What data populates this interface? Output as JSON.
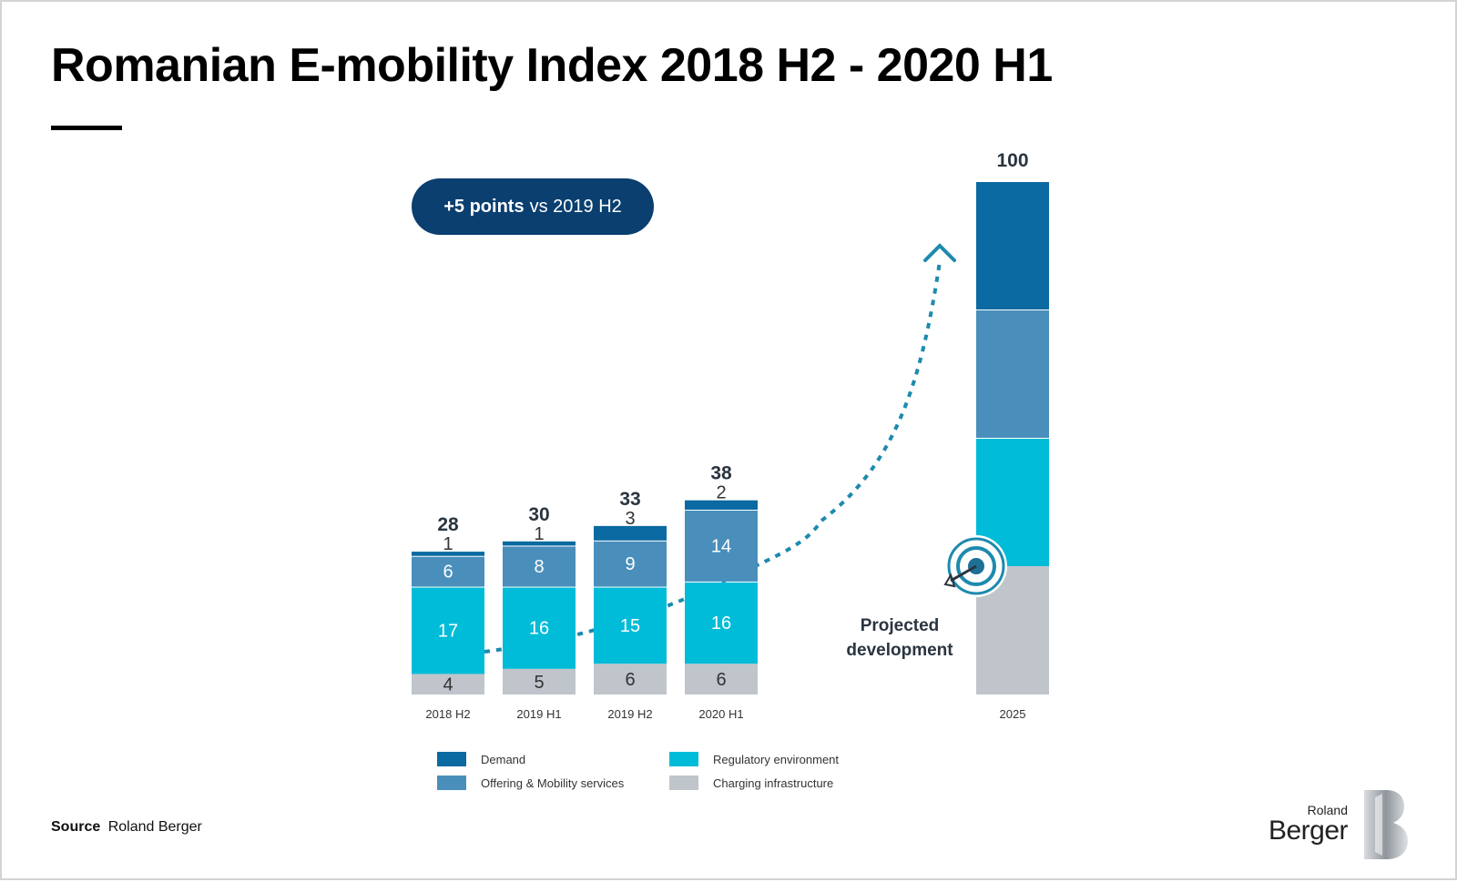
{
  "title": "Romanian E-mobility Index 2018 H2 - 2020 H1",
  "badge": {
    "strong": "+5 points",
    "light": "vs 2019 H2"
  },
  "projected_label_line1": "Projected",
  "projected_label_line2": "development",
  "source": {
    "key": "Source",
    "value": "Roland Berger"
  },
  "logo": {
    "word1": "Roland",
    "word2": "Berger"
  },
  "colors": {
    "demand": "#0a6aa1",
    "offering": "#4a8fbb",
    "regulatory": "#00bcd8",
    "charging": "#bfc5cb",
    "badge": "#0a3f6f",
    "arrow": "#1d8aae"
  },
  "chart_data": {
    "type": "bar",
    "stacked": true,
    "categories": [
      "2018 H2",
      "2019 H1",
      "2019 H2",
      "2020 H1",
      "2025"
    ],
    "series": [
      {
        "name": "Charging infrastructure",
        "values": [
          4,
          5,
          6,
          6,
          25
        ]
      },
      {
        "name": "Regulatory environment",
        "values": [
          17,
          16,
          15,
          16,
          25
        ]
      },
      {
        "name": "Offering & Mobility services",
        "values": [
          6,
          8,
          9,
          14,
          25
        ]
      },
      {
        "name": "Demand",
        "values": [
          1,
          1,
          3,
          2,
          25
        ]
      }
    ],
    "totals": [
      "28",
      "30",
      "33",
      "38",
      "100"
    ],
    "segment_labels": [
      [
        "4",
        "17",
        "6",
        "1"
      ],
      [
        "5",
        "16",
        "8",
        "1"
      ],
      [
        "6",
        "15",
        "9",
        "3"
      ],
      [
        "6",
        "16",
        "14",
        "2"
      ],
      [
        "",
        "",
        "",
        ""
      ]
    ],
    "ylim": [
      0,
      100
    ],
    "grid": false,
    "legend_position": "bottom",
    "legend": [
      {
        "label": "Demand",
        "color": "#0a6aa1"
      },
      {
        "label": "Offering & Mobility services",
        "color": "#4a8fbb"
      },
      {
        "label": "Regulatory environment",
        "color": "#00bcd8"
      },
      {
        "label": "Charging infrastructure",
        "color": "#bfc5cb"
      }
    ],
    "annotation": "Projected development"
  }
}
